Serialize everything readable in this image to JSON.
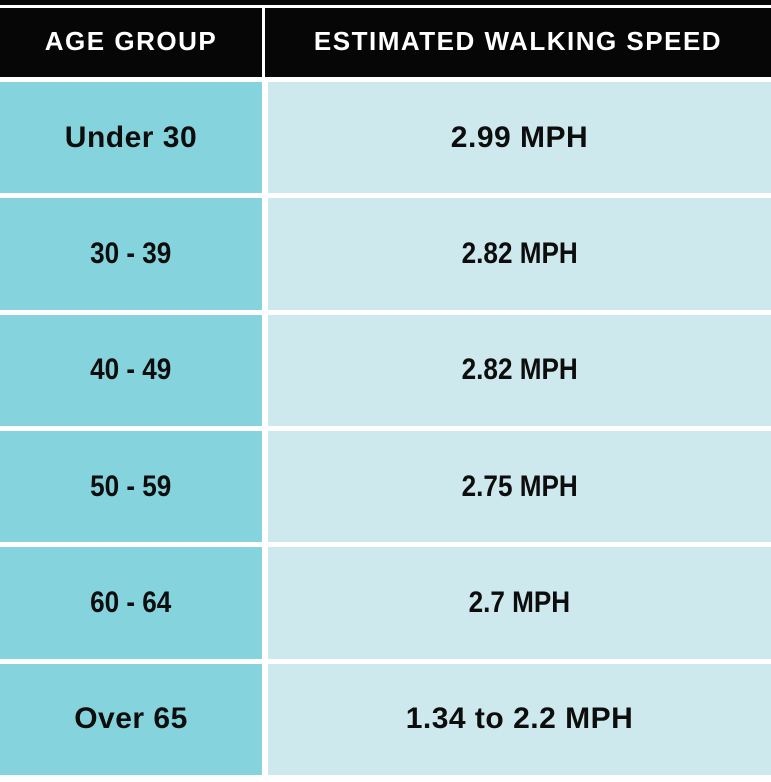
{
  "table": {
    "headers": [
      {
        "label": "AGE GROUP"
      },
      {
        "label": "ESTIMATED WALKING SPEED"
      }
    ],
    "rows": [
      {
        "age": "Under 30",
        "speed": "2.99 MPH"
      },
      {
        "age": "30 - 39",
        "speed": "2.82 MPH"
      },
      {
        "age": "40 - 49",
        "speed": "2.82 MPH"
      },
      {
        "age": "50 - 59",
        "speed": "2.75 MPH"
      },
      {
        "age": "60 - 64",
        "speed": "2.7 MPH"
      },
      {
        "age": "Over 65",
        "speed": "1.34 to 2.2 MPH"
      }
    ]
  },
  "chart_data": {
    "type": "table",
    "title": "",
    "columns": [
      "AGE GROUP",
      "ESTIMATED WALKING SPEED"
    ],
    "rows": [
      [
        "Under 30",
        "2.99 MPH"
      ],
      [
        "30 - 39",
        "2.82 MPH"
      ],
      [
        "40 - 49",
        "2.82 MPH"
      ],
      [
        "50 - 59",
        "2.75 MPH"
      ],
      [
        "60 - 64",
        "2.7 MPH"
      ],
      [
        "Over 65",
        "1.34 to 2.2 MPH"
      ]
    ],
    "values_mph": [
      {
        "age_group": "Under 30",
        "speed_mph": 2.99
      },
      {
        "age_group": "30 - 39",
        "speed_mph": 2.82
      },
      {
        "age_group": "40 - 49",
        "speed_mph": 2.82
      },
      {
        "age_group": "50 - 59",
        "speed_mph": 2.75
      },
      {
        "age_group": "60 - 64",
        "speed_mph": 2.7
      },
      {
        "age_group": "Over 65",
        "speed_mph_min": 1.34,
        "speed_mph_max": 2.2
      }
    ]
  },
  "theme": {
    "header_bg": "#060606",
    "header_text": "#ffffff",
    "age_cell_bg": "#85d4dd",
    "speed_cell_bg": "#cde9ee",
    "grid_color": "#ffffff",
    "cell_text": "#0d0d0d"
  }
}
